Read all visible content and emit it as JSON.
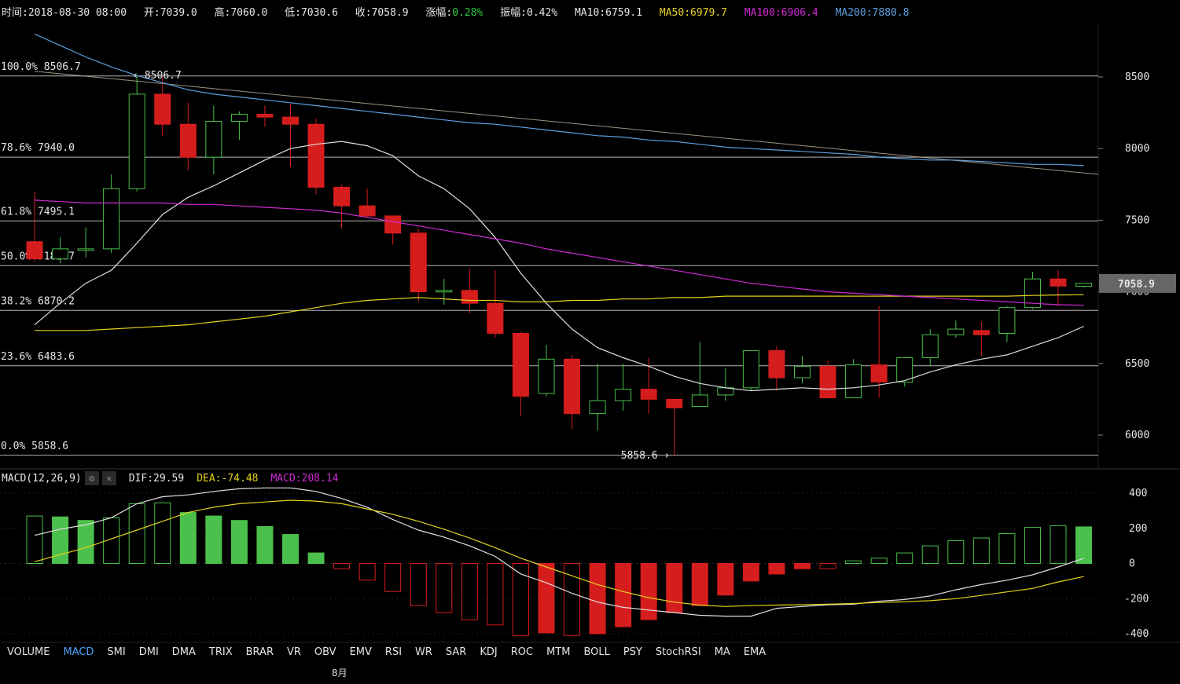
{
  "header": {
    "time_label": "时间:",
    "time": "2018-08-30 08:00",
    "open_label": "开:",
    "open": "7039.0",
    "high_label": "高:",
    "high": "7060.0",
    "low_label": "低:",
    "low": "7030.6",
    "close_label": "收:",
    "close": "7058.9",
    "change_label": "涨幅:",
    "change": "0.28%",
    "amplitude_label": "振幅:",
    "amplitude": "0.42%",
    "ma10": "MA10:6759.1",
    "ma50": "MA50:6979.7",
    "ma100": "MA100:6906.4",
    "ma200": "MA200:7880.8"
  },
  "colors": {
    "up": "#4cc04c",
    "down": "#d61d1d",
    "ma10": "#e0e0e0",
    "ma50": "#e6d21e",
    "ma100": "#d02ad6",
    "ma200": "#5aa0e0",
    "grid": "#d8d8d8",
    "change": "#2ecc40"
  },
  "fib": [
    {
      "label": "100.0% 8506.7",
      "value": 8506.7
    },
    {
      "label": "78.6% 7940.0",
      "value": 7940.0
    },
    {
      "label": "61.8% 7495.1",
      "value": 7495.1
    },
    {
      "label": "50.0% 7182.7",
      "value": 7182.7
    },
    {
      "label": "38.2% 6870.2",
      "value": 6870.2
    },
    {
      "label": "23.6% 6483.6",
      "value": 6483.6
    },
    {
      "label": "0.0% 5858.6",
      "value": 5858.6
    }
  ],
  "annotations": {
    "high_mark": "‹ 8506.7",
    "low_mark": "5858.6 ›"
  },
  "price_tag": "7058.9",
  "macd": {
    "title": "MACD(12,26,9)",
    "dif": "DIF:29.59",
    "dea": "DEA:-74.48",
    "macd": "MACD:208.14",
    "settings_icon": "gear-icon",
    "close_icon": "close-icon"
  },
  "indicators": [
    "VOLUME",
    "MACD",
    "SMI",
    "DMI",
    "DMA",
    "TRIX",
    "BRAR",
    "VR",
    "OBV",
    "EMV",
    "RSI",
    "WR",
    "SAR",
    "KDJ",
    "ROC",
    "MTM",
    "BOLL",
    "PSY",
    "StochRSI",
    "MA",
    "EMA"
  ],
  "active_indicator": "MACD",
  "month_label": "8月",
  "chart_data": [
    {
      "type": "candlestick",
      "title": "",
      "ylim": [
        5800,
        8750
      ],
      "yticks": [
        6000,
        6500,
        7000,
        7500,
        8000,
        8500
      ],
      "candles": [
        {
          "o": 7350,
          "h": 7700,
          "l": 7210,
          "c": 7230
        },
        {
          "o": 7230,
          "h": 7380,
          "l": 7200,
          "c": 7300
        },
        {
          "o": 7300,
          "h": 7450,
          "l": 7240,
          "c": 7300
        },
        {
          "o": 7300,
          "h": 7820,
          "l": 7270,
          "c": 7720
        },
        {
          "o": 7720,
          "h": 8510,
          "l": 7700,
          "c": 8380
        },
        {
          "o": 8380,
          "h": 8500,
          "l": 8090,
          "c": 8170
        },
        {
          "o": 8170,
          "h": 8320,
          "l": 7850,
          "c": 7940
        },
        {
          "o": 7940,
          "h": 8300,
          "l": 7820,
          "c": 8190
        },
        {
          "o": 8190,
          "h": 8260,
          "l": 8060,
          "c": 8240
        },
        {
          "o": 8240,
          "h": 8300,
          "l": 8150,
          "c": 8220
        },
        {
          "o": 8220,
          "h": 8310,
          "l": 7870,
          "c": 8170
        },
        {
          "o": 8170,
          "h": 8210,
          "l": 7680,
          "c": 7730
        },
        {
          "o": 7730,
          "h": 7750,
          "l": 7440,
          "c": 7600
        },
        {
          "o": 7600,
          "h": 7720,
          "l": 7520,
          "c": 7530
        },
        {
          "o": 7530,
          "h": 7520,
          "l": 7330,
          "c": 7410
        },
        {
          "o": 7410,
          "h": 7440,
          "l": 6930,
          "c": 7000
        },
        {
          "o": 7000,
          "h": 7090,
          "l": 6910,
          "c": 7010
        },
        {
          "o": 7010,
          "h": 7160,
          "l": 6850,
          "c": 6920
        },
        {
          "o": 6920,
          "h": 7150,
          "l": 6680,
          "c": 6710
        },
        {
          "o": 6710,
          "h": 6720,
          "l": 6130,
          "c": 6270
        },
        {
          "o": 6290,
          "h": 6630,
          "l": 6270,
          "c": 6530
        },
        {
          "o": 6530,
          "h": 6560,
          "l": 6040,
          "c": 6150
        },
        {
          "o": 6150,
          "h": 6500,
          "l": 6030,
          "c": 6240
        },
        {
          "o": 6240,
          "h": 6500,
          "l": 6170,
          "c": 6320
        },
        {
          "o": 6320,
          "h": 6540,
          "l": 6150,
          "c": 6250
        },
        {
          "o": 6250,
          "h": 6250,
          "l": 5860,
          "c": 6190
        },
        {
          "o": 6200,
          "h": 6650,
          "l": 6200,
          "c": 6280
        },
        {
          "o": 6280,
          "h": 6470,
          "l": 6240,
          "c": 6330
        },
        {
          "o": 6330,
          "h": 6590,
          "l": 6310,
          "c": 6590
        },
        {
          "o": 6590,
          "h": 6620,
          "l": 6310,
          "c": 6400
        },
        {
          "o": 6400,
          "h": 6550,
          "l": 6360,
          "c": 6480
        },
        {
          "o": 6480,
          "h": 6520,
          "l": 6260,
          "c": 6260
        },
        {
          "o": 6260,
          "h": 6530,
          "l": 6260,
          "c": 6490
        },
        {
          "o": 6490,
          "h": 6900,
          "l": 6260,
          "c": 6370
        },
        {
          "o": 6370,
          "h": 6540,
          "l": 6340,
          "c": 6540
        },
        {
          "o": 6540,
          "h": 6740,
          "l": 6480,
          "c": 6700
        },
        {
          "o": 6700,
          "h": 6800,
          "l": 6680,
          "c": 6740
        },
        {
          "o": 6730,
          "h": 6790,
          "l": 6550,
          "c": 6700
        },
        {
          "o": 6710,
          "h": 6900,
          "l": 6650,
          "c": 6890
        },
        {
          "o": 6890,
          "h": 7140,
          "l": 6880,
          "c": 7090
        },
        {
          "o": 7090,
          "h": 7150,
          "l": 6900,
          "c": 7040
        },
        {
          "o": 7039.0,
          "h": 7060.0,
          "l": 7030.6,
          "c": 7058.9
        }
      ],
      "series": [
        {
          "name": "MA10",
          "values": [
            6770,
            6920,
            7060,
            7150,
            7340,
            7540,
            7660,
            7740,
            7830,
            7920,
            8000,
            8030,
            8050,
            8020,
            7950,
            7810,
            7720,
            7580,
            7380,
            7130,
            6920,
            6740,
            6610,
            6540,
            6480,
            6410,
            6360,
            6330,
            6310,
            6320,
            6330,
            6320,
            6330,
            6350,
            6380,
            6440,
            6490,
            6530,
            6560,
            6620,
            6680,
            6759.1
          ]
        },
        {
          "name": "MA50",
          "values": [
            6730,
            6730,
            6730,
            6740,
            6750,
            6760,
            6770,
            6790,
            6810,
            6830,
            6860,
            6890,
            6920,
            6940,
            6950,
            6960,
            6950,
            6940,
            6940,
            6930,
            6930,
            6940,
            6940,
            6950,
            6950,
            6960,
            6960,
            6970,
            6970,
            6970,
            6970,
            6970,
            6970,
            6970,
            6970,
            6970,
            6970,
            6970,
            6970,
            6975,
            6978,
            6979.7
          ]
        },
        {
          "name": "MA100",
          "values": [
            7640,
            7630,
            7620,
            7620,
            7620,
            7620,
            7610,
            7610,
            7600,
            7590,
            7580,
            7570,
            7550,
            7520,
            7490,
            7460,
            7430,
            7400,
            7370,
            7340,
            7300,
            7270,
            7240,
            7210,
            7180,
            7150,
            7120,
            7090,
            7060,
            7040,
            7020,
            7000,
            6990,
            6980,
            6970,
            6960,
            6950,
            6940,
            6930,
            6920,
            6910,
            6906.4
          ]
        },
        {
          "name": "MA200",
          "values": [
            8800,
            8720,
            8640,
            8570,
            8510,
            8460,
            8410,
            8380,
            8360,
            8340,
            8320,
            8300,
            8280,
            8260,
            8240,
            8220,
            8200,
            8180,
            8170,
            8150,
            8130,
            8110,
            8090,
            8080,
            8060,
            8050,
            8030,
            8010,
            8000,
            7990,
            7980,
            7970,
            7960,
            7940,
            7930,
            7920,
            7920,
            7910,
            7900,
            7890,
            7890,
            7880.8
          ]
        }
      ],
      "trendline": {
        "from": 8540,
        "to": 7820
      }
    },
    {
      "type": "bar",
      "title": "MACD(12,26,9)",
      "ylim": [
        -430,
        460
      ],
      "yticks": [
        -400,
        -200,
        0,
        200,
        400
      ],
      "histogram": [
        270,
        265,
        245,
        260,
        340,
        345,
        290,
        270,
        245,
        210,
        165,
        60,
        -30,
        -95,
        -160,
        -240,
        -280,
        -320,
        -350,
        -410,
        -395,
        -410,
        -400,
        -360,
        -320,
        -280,
        -240,
        -180,
        -100,
        -60,
        -30,
        -30,
        15,
        30,
        60,
        100,
        130,
        145,
        170,
        205,
        215,
        208.14
      ],
      "series": [
        {
          "name": "DIF",
          "values": [
            160,
            195,
            220,
            260,
            340,
            380,
            390,
            410,
            425,
            430,
            430,
            410,
            370,
            320,
            250,
            190,
            150,
            100,
            40,
            -60,
            -110,
            -170,
            -220,
            -250,
            -265,
            -280,
            -295,
            -300,
            -300,
            -255,
            -245,
            -235,
            -232,
            -215,
            -205,
            -185,
            -150,
            -120,
            -95,
            -65,
            -20,
            29.59
          ]
        },
        {
          "name": "DEA",
          "values": [
            10,
            50,
            90,
            140,
            190,
            240,
            290,
            320,
            340,
            350,
            360,
            355,
            340,
            310,
            280,
            240,
            195,
            145,
            90,
            30,
            -20,
            -70,
            -120,
            -160,
            -195,
            -220,
            -237,
            -245,
            -240,
            -237,
            -235,
            -232,
            -228,
            -222,
            -218,
            -212,
            -200,
            -182,
            -162,
            -142,
            -105,
            -74.48
          ]
        }
      ]
    }
  ]
}
